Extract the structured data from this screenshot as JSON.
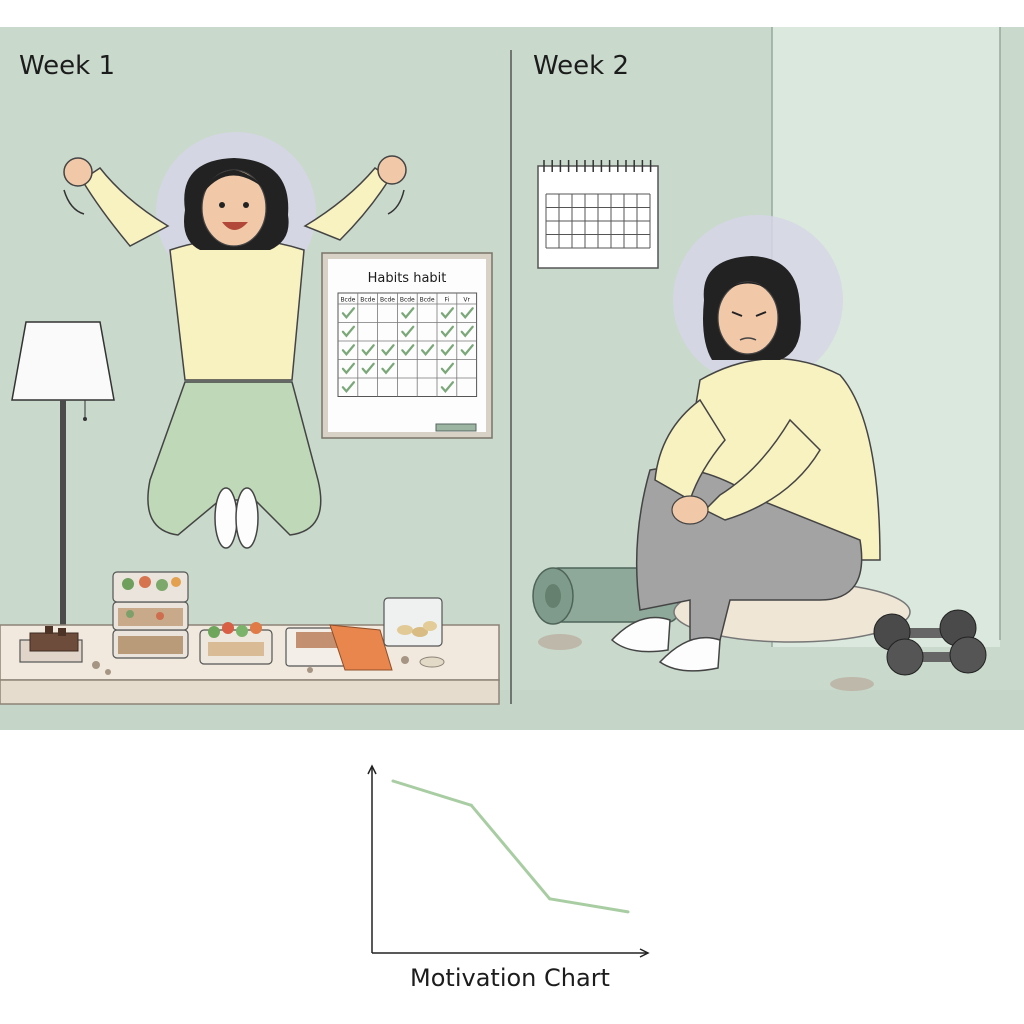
{
  "panels": {
    "left_title": "Week 1",
    "right_title": "Week 2"
  },
  "habit_board": {
    "title": "Habits habit",
    "columns": [
      "Bcde",
      "Bcde",
      "Bcde",
      "Bcde",
      "Bcde",
      "Fi",
      "Vr"
    ],
    "checks": [
      [
        1,
        0,
        0,
        1,
        0,
        1,
        1
      ],
      [
        1,
        0,
        0,
        1,
        0,
        1,
        1
      ],
      [
        1,
        1,
        1,
        1,
        1,
        1,
        1
      ],
      [
        1,
        1,
        1,
        0,
        0,
        1,
        0
      ],
      [
        1,
        0,
        0,
        0,
        0,
        1,
        0
      ]
    ]
  },
  "colors": {
    "wall": "#c9d9cc",
    "sweater": "#f8f1c0",
    "pants_week1": "#bfd8b8",
    "pants_week2": "#a3a3a3",
    "halo": "#d6d6e6",
    "check": "#7aa878",
    "chart_line": "#a9cda3"
  },
  "chart_data": {
    "type": "line",
    "title": "Motivation Chart",
    "xlabel": "",
    "ylabel": "",
    "x": [
      0,
      1,
      2,
      3
    ],
    "series": [
      {
        "values": [
          0.92,
          0.79,
          0.29,
          0.22
        ]
      }
    ],
    "ylim": [
      0,
      1
    ],
    "grid": false
  }
}
